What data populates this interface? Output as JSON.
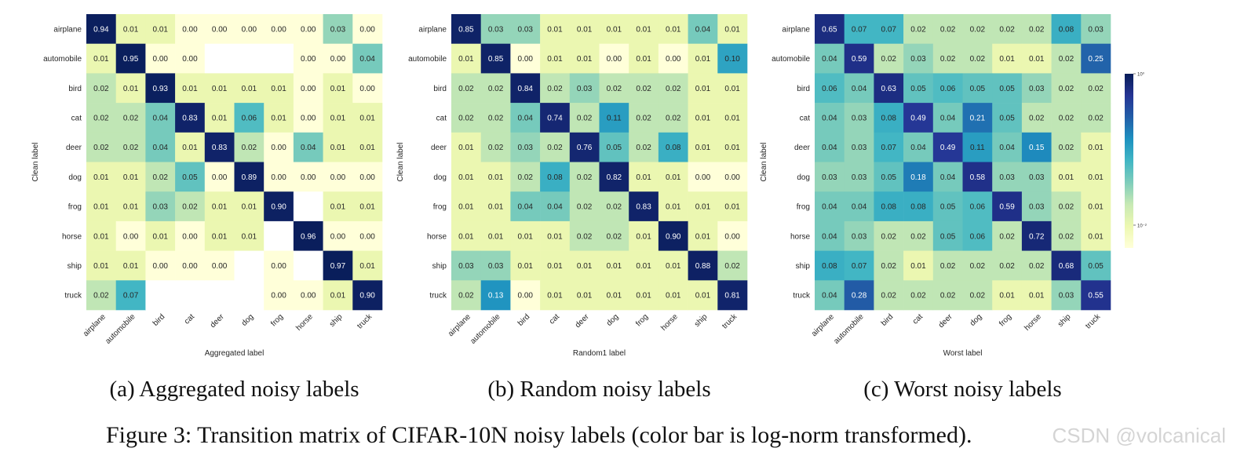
{
  "labels": [
    "airplane",
    "automobile",
    "bird",
    "cat",
    "deer",
    "dog",
    "frog",
    "horse",
    "ship",
    "truck"
  ],
  "colorbar": {
    "tick_high": "10⁰",
    "tick_low": "10⁻²",
    "colors": [
      "#ffffd9",
      "#edf8b1",
      "#c7e9b4",
      "#7fcdbb",
      "#41b6c4",
      "#1d91c0",
      "#225ea8",
      "#253494",
      "#081d58"
    ]
  },
  "figure_caption": "Figure 3: Transition matrix of CIFAR-10N noisy labels (color bar is log-norm transformed).",
  "watermark": "CSDN @volcanical",
  "chart_data": [
    {
      "type": "heatmap",
      "title": "",
      "caption": "(a) Aggregated noisy labels",
      "xlabel": "Aggregated label",
      "ylabel": "Clean label",
      "categories": [
        "airplane",
        "automobile",
        "bird",
        "cat",
        "deer",
        "dog",
        "frog",
        "horse",
        "ship",
        "truck"
      ],
      "values": [
        [
          0.94,
          0.01,
          0.01,
          0.0,
          0.0,
          0.0,
          0.0,
          0.0,
          0.03,
          0.0
        ],
        [
          0.01,
          0.95,
          0.0,
          0.0,
          null,
          null,
          null,
          0.0,
          0.0,
          0.04
        ],
        [
          0.02,
          0.01,
          0.93,
          0.01,
          0.01,
          0.01,
          0.01,
          0.0,
          0.01,
          0.0
        ],
        [
          0.02,
          0.02,
          0.04,
          0.83,
          0.01,
          0.06,
          0.01,
          0.0,
          0.01,
          0.01
        ],
        [
          0.02,
          0.02,
          0.04,
          0.01,
          0.83,
          0.02,
          0.0,
          0.04,
          0.01,
          0.01
        ],
        [
          0.01,
          0.01,
          0.02,
          0.05,
          0.0,
          0.89,
          0.0,
          0.0,
          0.0,
          0.0
        ],
        [
          0.01,
          0.01,
          0.03,
          0.02,
          0.01,
          0.01,
          0.9,
          null,
          0.01,
          0.01
        ],
        [
          0.01,
          0.0,
          0.01,
          0.0,
          0.01,
          0.01,
          null,
          0.96,
          0.0,
          0.0
        ],
        [
          0.01,
          0.01,
          0.0,
          0.0,
          0.0,
          null,
          0.0,
          null,
          0.97,
          0.01
        ],
        [
          0.02,
          0.07,
          null,
          null,
          null,
          null,
          0.0,
          0.0,
          0.01,
          0.9
        ]
      ],
      "color_scale": "log",
      "vlim": [
        0.005,
        1.0
      ]
    },
    {
      "type": "heatmap",
      "title": "",
      "caption": "(b) Random noisy labels",
      "xlabel": "Random1 label",
      "ylabel": "Clean label",
      "categories": [
        "airplane",
        "automobile",
        "bird",
        "cat",
        "deer",
        "dog",
        "frog",
        "horse",
        "ship",
        "truck"
      ],
      "values": [
        [
          0.85,
          0.03,
          0.03,
          0.01,
          0.01,
          0.01,
          0.01,
          0.01,
          0.04,
          0.01
        ],
        [
          0.01,
          0.85,
          0.0,
          0.01,
          0.01,
          0.0,
          0.01,
          0.0,
          0.01,
          0.1
        ],
        [
          0.02,
          0.02,
          0.84,
          0.02,
          0.03,
          0.02,
          0.02,
          0.02,
          0.01,
          0.01
        ],
        [
          0.02,
          0.02,
          0.04,
          0.74,
          0.02,
          0.11,
          0.02,
          0.02,
          0.01,
          0.01
        ],
        [
          0.01,
          0.02,
          0.03,
          0.02,
          0.76,
          0.05,
          0.02,
          0.08,
          0.01,
          0.01
        ],
        [
          0.01,
          0.01,
          0.02,
          0.08,
          0.02,
          0.82,
          0.01,
          0.01,
          0.0,
          0.0
        ],
        [
          0.01,
          0.01,
          0.04,
          0.04,
          0.02,
          0.02,
          0.83,
          0.01,
          0.01,
          0.01
        ],
        [
          0.01,
          0.01,
          0.01,
          0.01,
          0.02,
          0.02,
          0.01,
          0.9,
          0.01,
          0.0
        ],
        [
          0.03,
          0.03,
          0.01,
          0.01,
          0.01,
          0.01,
          0.01,
          0.01,
          0.88,
          0.02
        ],
        [
          0.02,
          0.13,
          0.0,
          0.01,
          0.01,
          0.01,
          0.01,
          0.01,
          0.01,
          0.81
        ]
      ],
      "color_scale": "log",
      "vlim": [
        0.005,
        1.0
      ]
    },
    {
      "type": "heatmap",
      "title": "",
      "caption": "(c) Worst noisy labels",
      "xlabel": "Worst label",
      "ylabel": "Clean label",
      "categories": [
        "airplane",
        "automobile",
        "bird",
        "cat",
        "deer",
        "dog",
        "frog",
        "horse",
        "ship",
        "truck"
      ],
      "values": [
        [
          0.65,
          0.07,
          0.07,
          0.02,
          0.02,
          0.02,
          0.02,
          0.02,
          0.08,
          0.03
        ],
        [
          0.04,
          0.59,
          0.02,
          0.03,
          0.02,
          0.02,
          0.01,
          0.01,
          0.02,
          0.25
        ],
        [
          0.06,
          0.04,
          0.63,
          0.05,
          0.06,
          0.05,
          0.05,
          0.03,
          0.02,
          0.02
        ],
        [
          0.04,
          0.03,
          0.08,
          0.49,
          0.04,
          0.21,
          0.05,
          0.02,
          0.02,
          0.02
        ],
        [
          0.04,
          0.03,
          0.07,
          0.04,
          0.49,
          0.11,
          0.04,
          0.15,
          0.02,
          0.01
        ],
        [
          0.03,
          0.03,
          0.05,
          0.18,
          0.04,
          0.58,
          0.03,
          0.03,
          0.01,
          0.01
        ],
        [
          0.04,
          0.04,
          0.08,
          0.08,
          0.05,
          0.06,
          0.59,
          0.03,
          0.02,
          0.01
        ],
        [
          0.04,
          0.03,
          0.02,
          0.02,
          0.05,
          0.06,
          0.02,
          0.72,
          0.02,
          0.01
        ],
        [
          0.08,
          0.07,
          0.02,
          0.01,
          0.02,
          0.02,
          0.02,
          0.02,
          0.68,
          0.05
        ],
        [
          0.04,
          0.28,
          0.02,
          0.02,
          0.02,
          0.02,
          0.01,
          0.01,
          0.03,
          0.55
        ]
      ],
      "color_scale": "log",
      "vlim": [
        0.005,
        1.0
      ]
    }
  ]
}
